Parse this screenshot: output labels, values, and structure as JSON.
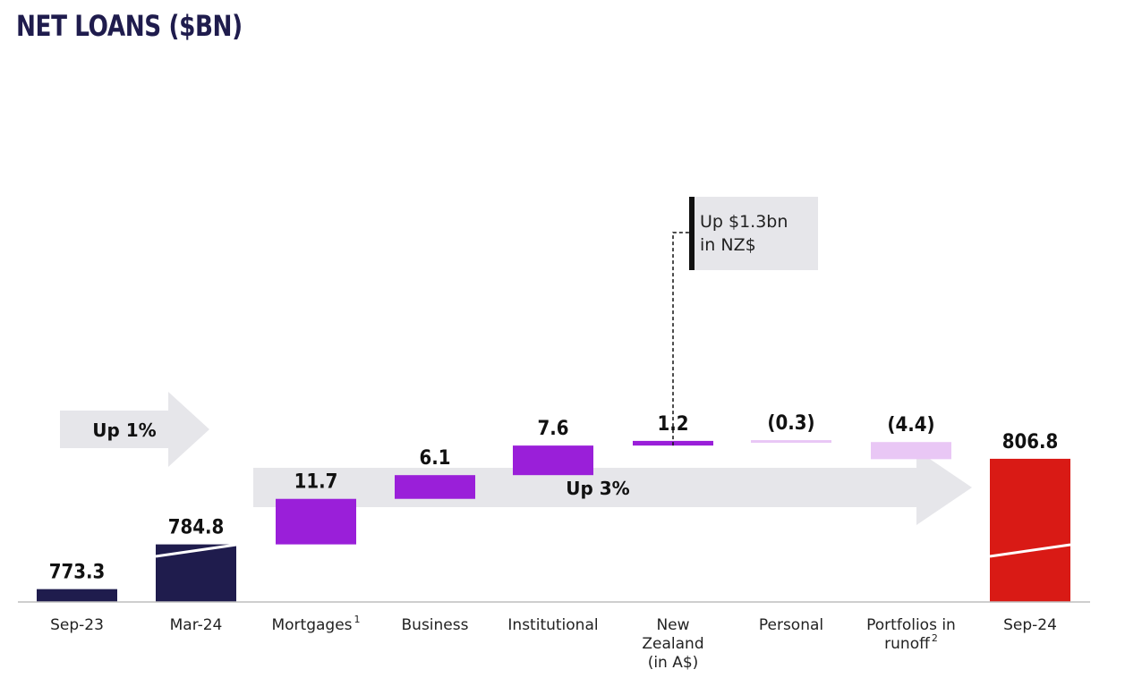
{
  "title": "NET LOANS ($BN)",
  "chart_data": {
    "type": "waterfall",
    "title": "NET LOANS ($BN)",
    "categories": [
      "Sep-23",
      "Mar-24",
      "Mortgages",
      "Business",
      "Institutional",
      "New Zealand (in A$)",
      "Personal",
      "Portfolios in runoff",
      "Sep-24"
    ],
    "category_lines": [
      [
        "Sep-23"
      ],
      [
        "Mar-24"
      ],
      [
        "Mortgages"
      ],
      [
        "Business"
      ],
      [
        "Institutional"
      ],
      [
        "New",
        "Zealand",
        "(in A$)"
      ],
      [
        "Personal"
      ],
      [
        "Portfolios in",
        "runoff"
      ],
      [
        "Sep-24"
      ]
    ],
    "superscripts": [
      "",
      "",
      "1",
      "",
      "",
      "",
      "",
      "2",
      ""
    ],
    "kinds": [
      "total",
      "total",
      "delta",
      "delta",
      "delta",
      "delta",
      "delta",
      "delta",
      "total"
    ],
    "values": [
      773.3,
      784.8,
      11.7,
      6.1,
      7.6,
      1.2,
      -0.3,
      -4.4,
      806.8
    ],
    "labels": [
      "773.3",
      "784.8",
      "11.7",
      "6.1",
      "7.6",
      "1.2",
      "(0.3)",
      "(4.4)",
      "806.8"
    ],
    "colors": {
      "total": "#1f1c4d",
      "final": "#d91a15",
      "increase": "#9a1fd9",
      "decrease": "#e9c7f5",
      "arrow": "#e6e6ea",
      "callout": "#e6e6ea"
    },
    "axis": "broken y-axis (not shown)",
    "annotations": [
      {
        "text": "Up 1%",
        "from": "Sep-23",
        "to": "Mar-24"
      },
      {
        "text": "Up 3%",
        "from": "Mar-24",
        "to": "Sep-24"
      }
    ],
    "callout": {
      "category": "New Zealand (in A$)",
      "lines": [
        "Up $1.3bn",
        "in NZ$"
      ]
    }
  }
}
